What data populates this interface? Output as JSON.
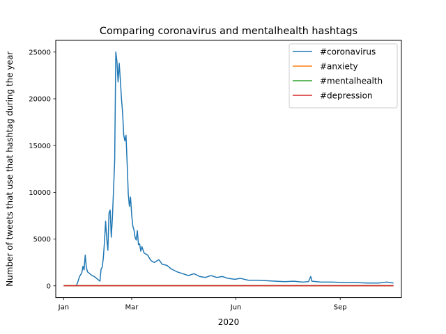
{
  "chart_data": {
    "type": "line",
    "title": "Comparing coronavirus and mentalhealth hashtags",
    "xlabel": "2020",
    "ylabel": "Number of tweets that use that hashtag during the year",
    "xlim": [
      "2019-12-25",
      "2020-10-25"
    ],
    "ylim": [
      -1250,
      26250
    ],
    "x_ticks": [
      {
        "date": "2020-01-01",
        "label": "Jan"
      },
      {
        "date": "2020-03-01",
        "label": "Mar"
      },
      {
        "date": "2020-06-01",
        "label": "Jun"
      },
      {
        "date": "2020-09-01",
        "label": "Sep"
      }
    ],
    "y_ticks": [
      0,
      5000,
      10000,
      15000,
      20000,
      25000
    ],
    "y_tick_labels": [
      "0",
      "5000",
      "10000",
      "15000",
      "20000",
      "25000"
    ],
    "grid": false,
    "legend": "top-right",
    "series": [
      {
        "name": "#coronavirus",
        "color": "#1f77b4",
        "points": [
          [
            "2020-01-01",
            0
          ],
          [
            "2020-01-08",
            0
          ],
          [
            "2020-01-12",
            0
          ],
          [
            "2020-01-13",
            250
          ],
          [
            "2020-01-15",
            1000
          ],
          [
            "2020-01-17",
            1400
          ],
          [
            "2020-01-18",
            2100
          ],
          [
            "2020-01-19",
            1700
          ],
          [
            "2020-01-20",
            3300
          ],
          [
            "2020-01-21",
            2000
          ],
          [
            "2020-01-22",
            1500
          ],
          [
            "2020-01-24",
            1300
          ],
          [
            "2020-01-26",
            1100
          ],
          [
            "2020-01-28",
            1000
          ],
          [
            "2020-01-30",
            800
          ],
          [
            "2020-02-01",
            600
          ],
          [
            "2020-02-02",
            500
          ],
          [
            "2020-02-03",
            1800
          ],
          [
            "2020-02-04",
            2000
          ],
          [
            "2020-02-05",
            3000
          ],
          [
            "2020-02-06",
            4700
          ],
          [
            "2020-02-07",
            6900
          ],
          [
            "2020-02-08",
            5000
          ],
          [
            "2020-02-09",
            3800
          ],
          [
            "2020-02-10",
            7800
          ],
          [
            "2020-02-11",
            8100
          ],
          [
            "2020-02-12",
            5200
          ],
          [
            "2020-02-13",
            7300
          ],
          [
            "2020-02-14",
            10300
          ],
          [
            "2020-02-15",
            13400
          ],
          [
            "2020-02-16",
            25000
          ],
          [
            "2020-02-17",
            24000
          ],
          [
            "2020-02-18",
            21800
          ],
          [
            "2020-02-19",
            23800
          ],
          [
            "2020-02-20",
            22000
          ],
          [
            "2020-02-21",
            20000
          ],
          [
            "2020-02-22",
            18500
          ],
          [
            "2020-02-23",
            16100
          ],
          [
            "2020-02-24",
            15500
          ],
          [
            "2020-02-25",
            16100
          ],
          [
            "2020-02-26",
            13100
          ],
          [
            "2020-02-27",
            9800
          ],
          [
            "2020-02-28",
            8500
          ],
          [
            "2020-02-29",
            9500
          ],
          [
            "2020-03-01",
            7600
          ],
          [
            "2020-03-02",
            6400
          ],
          [
            "2020-03-03",
            6000
          ],
          [
            "2020-03-04",
            5200
          ],
          [
            "2020-03-05",
            4900
          ],
          [
            "2020-03-06",
            5900
          ],
          [
            "2020-03-07",
            4400
          ],
          [
            "2020-03-08",
            4500
          ],
          [
            "2020-03-09",
            3700
          ],
          [
            "2020-03-10",
            4200
          ],
          [
            "2020-03-12",
            3500
          ],
          [
            "2020-03-15",
            3300
          ],
          [
            "2020-03-18",
            2700
          ],
          [
            "2020-03-21",
            2500
          ],
          [
            "2020-03-25",
            2800
          ],
          [
            "2020-03-28",
            2300
          ],
          [
            "2020-04-01",
            2200
          ],
          [
            "2020-04-05",
            1800
          ],
          [
            "2020-04-10",
            1500
          ],
          [
            "2020-04-15",
            1300
          ],
          [
            "2020-04-20",
            1100
          ],
          [
            "2020-04-25",
            1300
          ],
          [
            "2020-04-30",
            1000
          ],
          [
            "2020-05-05",
            900
          ],
          [
            "2020-05-10",
            1100
          ],
          [
            "2020-05-15",
            900
          ],
          [
            "2020-05-20",
            1000
          ],
          [
            "2020-05-25",
            800
          ],
          [
            "2020-05-31",
            700
          ],
          [
            "2020-06-05",
            800
          ],
          [
            "2020-06-12",
            600
          ],
          [
            "2020-06-20",
            600
          ],
          [
            "2020-06-28",
            550
          ],
          [
            "2020-07-06",
            500
          ],
          [
            "2020-07-14",
            450
          ],
          [
            "2020-07-22",
            500
          ],
          [
            "2020-07-30",
            400
          ],
          [
            "2020-08-04",
            450
          ],
          [
            "2020-08-06",
            1000
          ],
          [
            "2020-08-07",
            500
          ],
          [
            "2020-08-15",
            400
          ],
          [
            "2020-08-25",
            400
          ],
          [
            "2020-09-05",
            350
          ],
          [
            "2020-09-15",
            350
          ],
          [
            "2020-09-25",
            300
          ],
          [
            "2020-10-05",
            300
          ],
          [
            "2020-10-12",
            400
          ],
          [
            "2020-10-18",
            300
          ]
        ]
      },
      {
        "name": "#anxiety",
        "color": "#ff7f0e",
        "points": [
          [
            "2020-01-01",
            10
          ],
          [
            "2020-04-01",
            10
          ],
          [
            "2020-07-01",
            10
          ],
          [
            "2020-10-18",
            10
          ]
        ]
      },
      {
        "name": "#mentalhealth",
        "color": "#2ca02c",
        "points": [
          [
            "2020-01-01",
            20
          ],
          [
            "2020-04-01",
            20
          ],
          [
            "2020-07-01",
            20
          ],
          [
            "2020-10-18",
            20
          ]
        ]
      },
      {
        "name": "#depression",
        "color": "#d62728",
        "points": [
          [
            "2020-01-01",
            10
          ],
          [
            "2020-04-01",
            10
          ],
          [
            "2020-07-01",
            10
          ],
          [
            "2020-10-18",
            10
          ]
        ]
      }
    ]
  }
}
